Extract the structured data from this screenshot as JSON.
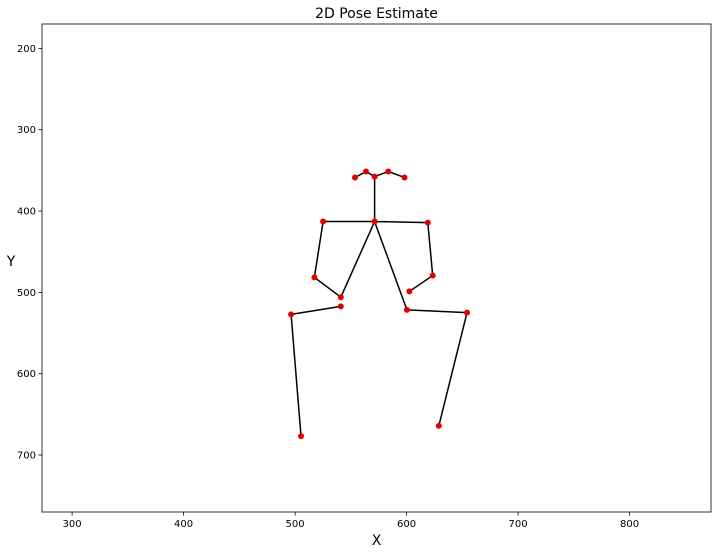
{
  "chart_data": {
    "type": "scatter",
    "title": "2D Pose Estimate",
    "xlabel": "X",
    "ylabel": "Y",
    "xlim": [
      273,
      873
    ],
    "ylim": [
      770,
      170
    ],
    "y_axis_inverted": true,
    "grid": false,
    "xticks": [
      300,
      400,
      500,
      600,
      700,
      800
    ],
    "yticks": [
      200,
      300,
      400,
      500,
      600,
      700
    ],
    "marker_color": "#e00000",
    "line_color": "#000000",
    "keypoints": [
      {
        "x": 571.3,
        "y": 357.6
      },
      {
        "x": 553.7,
        "y": 358.7
      },
      {
        "x": 563.6,
        "y": 351.4
      },
      {
        "x": 583.6,
        "y": 351.4
      },
      {
        "x": 598.1,
        "y": 358.7
      },
      {
        "x": 571.3,
        "y": 412.9
      },
      {
        "x": 525.1,
        "y": 412.9
      },
      {
        "x": 619.0,
        "y": 414.2
      },
      {
        "x": 517.3,
        "y": 481.5
      },
      {
        "x": 623.4,
        "y": 479.3
      },
      {
        "x": 541.0,
        "y": 505.9
      },
      {
        "x": 602.5,
        "y": 498.7
      },
      {
        "x": 541.0,
        "y": 517.2
      },
      {
        "x": 600.3,
        "y": 521.5
      },
      {
        "x": 496.4,
        "y": 527.0
      },
      {
        "x": 654.2,
        "y": 524.8
      },
      {
        "x": 505.3,
        "y": 676.7
      },
      {
        "x": 628.9,
        "y": 664.1
      }
    ],
    "connections": [
      [
        1,
        2
      ],
      [
        2,
        0
      ],
      [
        0,
        3
      ],
      [
        3,
        4
      ],
      [
        0,
        5
      ],
      [
        5,
        6
      ],
      [
        6,
        8
      ],
      [
        8,
        10
      ],
      [
        10,
        5
      ],
      [
        5,
        7
      ],
      [
        7,
        9
      ],
      [
        9,
        11
      ],
      [
        5,
        13
      ],
      [
        13,
        15
      ],
      [
        15,
        17
      ],
      [
        12,
        14
      ],
      [
        14,
        16
      ]
    ]
  }
}
